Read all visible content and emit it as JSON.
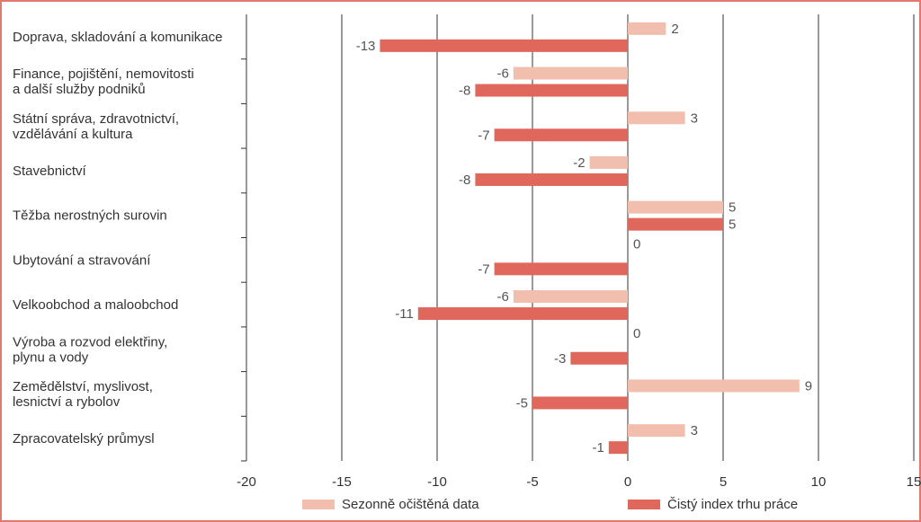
{
  "chart_data": {
    "type": "bar",
    "orientation": "horizontal",
    "title": "",
    "xlabel": "",
    "ylabel": "",
    "categories": [
      "Doprava, skladování a komunikace",
      "Finance, pojištění, nemovitosti a další služby podniků",
      "Státní správa, zdravotnictví, vzdělávání a kultura",
      "Stavebnictví",
      "Těžba nerostných surovin",
      "Ubytování a stravování",
      "Velkoobchod a maloobchod",
      "Výroba a rozvod elektřiny, plynu a vody",
      "Zemědělství, myslivost, lesnictví a rybolov",
      "Zpracovatelský průmysl"
    ],
    "category_lines": [
      [
        "Doprava, skladování a komunikace"
      ],
      [
        "Finance, pojištění, nemovitosti",
        "a další služby podniků"
      ],
      [
        "Státní správa, zdravotnictví,",
        "vzdělávání a kultura"
      ],
      [
        "Stavebnictví"
      ],
      [
        "Těžba nerostných surovin"
      ],
      [
        "Ubytování a stravování"
      ],
      [
        "Velkoobchod a maloobchod"
      ],
      [
        "Výroba a rozvod elektřiny,",
        "plynu a vody"
      ],
      [
        "Zemědělství, myslivost,",
        "lesnictví a rybolov"
      ],
      [
        "Zpracovatelský průmysl"
      ]
    ],
    "series": [
      {
        "name": "Sezonně očištěná data",
        "color": "#f2bfae",
        "values": [
          2,
          -6,
          3,
          -2,
          5,
          0,
          -6,
          0,
          9,
          3
        ],
        "labels": [
          "2",
          "-6",
          "3",
          "-2",
          "5",
          "0",
          "-6",
          "0",
          "9",
          "3"
        ]
      },
      {
        "name": "Čistý index trhu práce",
        "color": "#e0675b",
        "values": [
          -13,
          -8,
          -7,
          -8,
          5,
          -7,
          -11,
          -3,
          -5,
          -1
        ],
        "labels": [
          "-13",
          "-8",
          "-7",
          "-8",
          "5",
          "-7",
          "-11",
          "-3",
          "-5",
          "-1"
        ]
      }
    ],
    "x_ticks": [
      -20,
      -15,
      -10,
      -5,
      0,
      5,
      10,
      15
    ],
    "x_tick_labels": [
      "-20",
      "-15",
      "-10",
      "-5",
      "0",
      "5",
      "10",
      "15"
    ],
    "xlim": [
      -20,
      15
    ],
    "grid": true,
    "legend": "bottom",
    "colors": {
      "border": "#e07a6e",
      "grid": "#333333",
      "text": "#333333",
      "label": "#555555"
    }
  }
}
